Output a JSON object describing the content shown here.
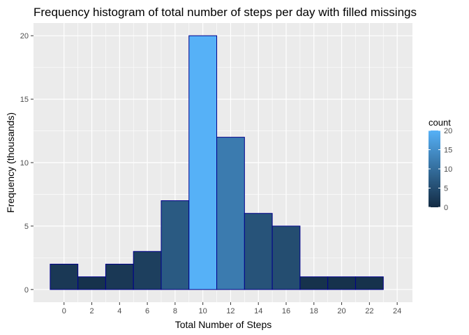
{
  "chart_data": {
    "type": "bar",
    "title": "Frequency histogram of total number of steps per day with filled missings",
    "xlabel": "Total Number of Steps",
    "ylabel": "Frequency (thousands)",
    "bin_width": 2,
    "bins": [
      {
        "x_start": -1,
        "x_end": 1,
        "count": 2
      },
      {
        "x_start": 1,
        "x_end": 3,
        "count": 1
      },
      {
        "x_start": 3,
        "x_end": 5,
        "count": 2
      },
      {
        "x_start": 5,
        "x_end": 7,
        "count": 3
      },
      {
        "x_start": 7,
        "x_end": 9,
        "count": 7
      },
      {
        "x_start": 9,
        "x_end": 11,
        "count": 20
      },
      {
        "x_start": 11,
        "x_end": 13,
        "count": 12
      },
      {
        "x_start": 13,
        "x_end": 15,
        "count": 6
      },
      {
        "x_start": 15,
        "x_end": 17,
        "count": 5
      },
      {
        "x_start": 17,
        "x_end": 19,
        "count": 1
      },
      {
        "x_start": 19,
        "x_end": 21,
        "count": 1
      },
      {
        "x_start": 21,
        "x_end": 23,
        "count": 1
      }
    ],
    "x_ticks": [
      "0",
      "2",
      "4",
      "6",
      "8",
      "10",
      "12",
      "14",
      "16",
      "18",
      "20",
      "22",
      "24"
    ],
    "x_tick_values": [
      0,
      2,
      4,
      6,
      8,
      10,
      12,
      14,
      16,
      18,
      20,
      22,
      24
    ],
    "y_ticks": [
      "0",
      "5",
      "10",
      "15",
      "20"
    ],
    "y_tick_values": [
      0,
      5,
      10,
      15,
      20
    ],
    "xlim": [
      -2.2,
      25.1
    ],
    "ylim": [
      -1,
      21
    ],
    "grid": true,
    "colors": {
      "panel_bg": "#ebebeb",
      "grid_major": "#ffffff",
      "bar_border": "#00008b",
      "fill_low": "#132b43",
      "fill_high": "#56b1f7"
    },
    "legend": {
      "title": "count",
      "position": "right",
      "labels": [
        "0",
        "5",
        "10",
        "15",
        "20"
      ],
      "values": [
        0,
        5,
        10,
        15,
        20
      ],
      "range": [
        0,
        20
      ]
    }
  }
}
